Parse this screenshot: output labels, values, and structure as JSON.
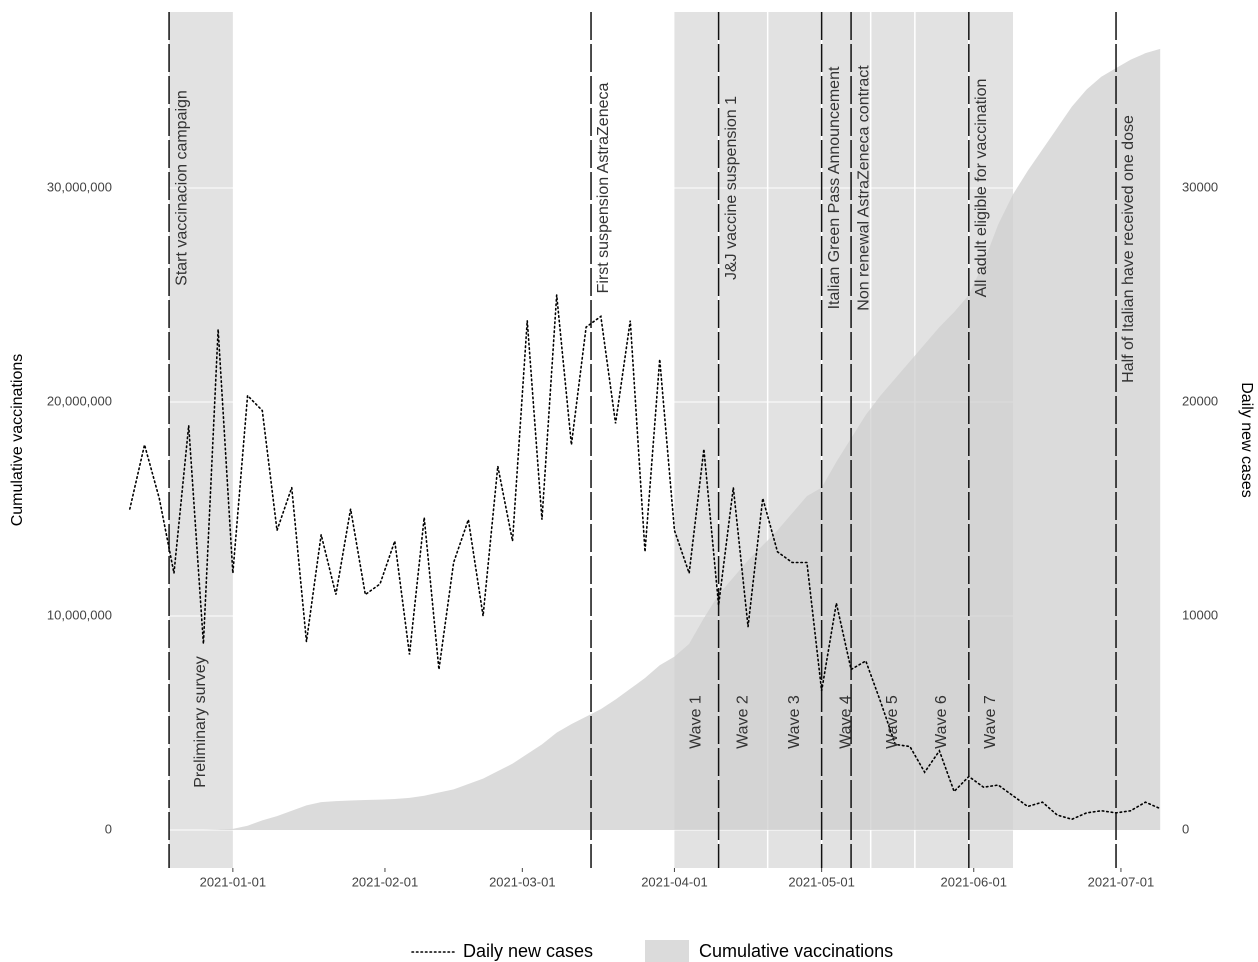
{
  "chart_data": {
    "type": "line",
    "x": [
      "2020-12-11",
      "2020-12-14",
      "2020-12-17",
      "2020-12-20",
      "2020-12-23",
      "2020-12-26",
      "2020-12-29",
      "2021-01-01",
      "2021-01-04",
      "2021-01-07",
      "2021-01-10",
      "2021-01-13",
      "2021-01-16",
      "2021-01-19",
      "2021-01-22",
      "2021-01-25",
      "2021-01-28",
      "2021-01-31",
      "2021-02-03",
      "2021-02-06",
      "2021-02-09",
      "2021-02-12",
      "2021-02-15",
      "2021-02-18",
      "2021-02-21",
      "2021-02-24",
      "2021-02-27",
      "2021-03-02",
      "2021-03-05",
      "2021-03-08",
      "2021-03-11",
      "2021-03-14",
      "2021-03-17",
      "2021-03-20",
      "2021-03-23",
      "2021-03-26",
      "2021-03-29",
      "2021-04-01",
      "2021-04-04",
      "2021-04-07",
      "2021-04-10",
      "2021-04-13",
      "2021-04-16",
      "2021-04-19",
      "2021-04-22",
      "2021-04-25",
      "2021-04-28",
      "2021-05-01",
      "2021-05-04",
      "2021-05-07",
      "2021-05-10",
      "2021-05-13",
      "2021-05-16",
      "2021-05-19",
      "2021-05-22",
      "2021-05-25",
      "2021-05-28",
      "2021-05-31",
      "2021-06-03",
      "2021-06-06",
      "2021-06-09",
      "2021-06-12",
      "2021-06-15",
      "2021-06-18",
      "2021-06-21",
      "2021-06-24",
      "2021-06-27",
      "2021-06-30",
      "2021-07-03",
      "2021-07-06",
      "2021-07-09"
    ],
    "series": [
      {
        "name": "Daily new cases",
        "color": "#000000",
        "axis": "y2",
        "values": [
          15000,
          18000,
          15500,
          12000,
          18900,
          8700,
          23400,
          12000,
          20300,
          19600,
          14000,
          16000,
          8800,
          13800,
          11000,
          15000,
          11000,
          11500,
          13500,
          8200,
          14600,
          7500,
          12500,
          14500,
          10000,
          17000,
          13500,
          23800,
          14500,
          25000,
          18000,
          23500,
          24000,
          19000,
          23800,
          13000,
          22000,
          14000,
          12000,
          17800,
          10500,
          16000,
          9500,
          15500,
          13000,
          12500,
          12500,
          6500,
          10600,
          7500,
          7900,
          6000,
          4000,
          3900,
          2700,
          3700,
          1800,
          2500,
          2000,
          2100,
          1600,
          1100,
          1300,
          700,
          500,
          800,
          900,
          800,
          900,
          1300,
          1000
        ]
      },
      {
        "name": "Cumulative vaccinations",
        "color": "#cfcfcf",
        "values": [
          null,
          null,
          null,
          null,
          null,
          0,
          20000,
          50000,
          200000,
          450000,
          650000,
          900000,
          1150000,
          1300000,
          1350000,
          1380000,
          1400000,
          1420000,
          1450000,
          1500000,
          1600000,
          1750000,
          1900000,
          2150000,
          2400000,
          2750000,
          3100000,
          3550000,
          4000000,
          4550000,
          4950000,
          5300000,
          5650000,
          6100000,
          6600000,
          7100000,
          7700000,
          8100000,
          8700000,
          9900000,
          11000000,
          11800000,
          12600000,
          13300000,
          14000000,
          14800000,
          15600000,
          16000000,
          17200000,
          18300000,
          19400000,
          20300000,
          21100000,
          21900000,
          22700000,
          23500000,
          24200000,
          25000000,
          26500000,
          28300000,
          29700000,
          30800000,
          31800000,
          32800000,
          33800000,
          34600000,
          35200000,
          35600000,
          36000000,
          36300000,
          36500000
        ]
      }
    ],
    "xlim": [
      "2020-12-09",
      "2021-07-11"
    ],
    "xticks": [
      "2021-01-01",
      "2021-02-01",
      "2021-03-01",
      "2021-04-01",
      "2021-05-01",
      "2021-06-01",
      "2021-07-01"
    ],
    "ylim": [
      -1776000,
      38224000
    ],
    "yticks": [
      0,
      {
        "value": 10000000,
        "label": "10,000,000"
      },
      {
        "value": 20000000,
        "label": "20,000,000"
      },
      {
        "value": 30000000,
        "label": "30,000,000"
      }
    ],
    "y2lim": [
      -1776,
      38224
    ],
    "y2ticks": [
      0,
      10000,
      20000,
      30000
    ],
    "ylabel": "Cumulative vaccinations",
    "y2label": "Daily new cases",
    "grid": true,
    "legend": "bottom",
    "shade_color": "#d6d6d6",
    "events": [
      {
        "date": "2020-12-19",
        "label": "Start vaccinacion campaign"
      },
      {
        "date": "2021-03-15",
        "label": "First suspension AstraZeneca"
      },
      {
        "date": "2021-04-10",
        "label": "J&J vaccine suspension 1"
      },
      {
        "date": "2021-05-01",
        "label": "Italian Green Pass Announcement"
      },
      {
        "date": "2021-05-07",
        "label": "Non renewal AstraZeneca contract"
      },
      {
        "date": "2021-05-31",
        "label": "All adult eligible for vaccination"
      },
      {
        "date": "2021-06-30",
        "label": "Half of Italian have received one dose"
      }
    ],
    "periods": [
      {
        "start": "2020-12-19",
        "end": "2021-01-01",
        "label": "Preliminary survey"
      },
      {
        "start": "2021-04-01",
        "end": "2021-04-10",
        "label": "Wave 1"
      },
      {
        "start": "2021-04-10",
        "end": "2021-04-20",
        "label": "Wave 2"
      },
      {
        "start": "2021-04-20",
        "end": "2021-05-01",
        "label": "Wave 3"
      },
      {
        "start": "2021-05-01",
        "end": "2021-05-11",
        "label": "Wave 4"
      },
      {
        "start": "2021-05-11",
        "end": "2021-05-20",
        "label": "Wave 5"
      },
      {
        "start": "2021-05-20",
        "end": "2021-05-31",
        "label": "Wave 6"
      },
      {
        "start": "2021-05-31",
        "end": "2021-06-09",
        "label": "Wave 7"
      }
    ]
  }
}
